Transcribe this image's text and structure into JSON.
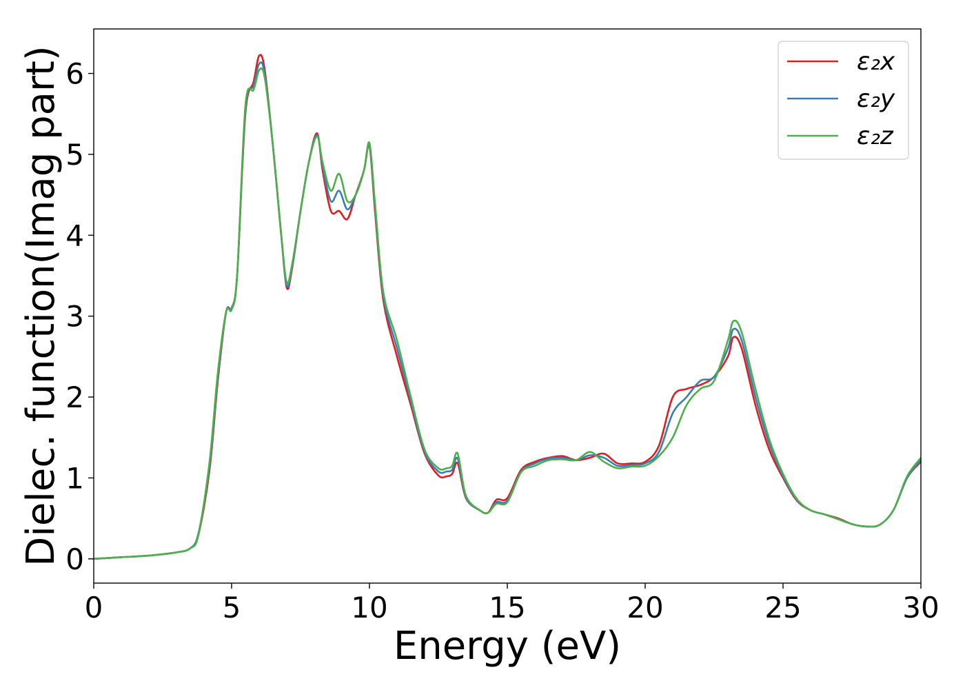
{
  "chart_data": {
    "type": "line",
    "title": "",
    "xlabel": "Energy (eV)",
    "ylabel": "Dielec. function(Imag part)",
    "xlim": [
      0,
      30
    ],
    "ylim": [
      -0.3,
      6.55
    ],
    "x_ticks": [
      "0",
      "5",
      "10",
      "15",
      "20",
      "25",
      "30"
    ],
    "y_ticks": [
      "0",
      "1",
      "2",
      "3",
      "4",
      "5",
      "6"
    ],
    "grid": false,
    "legend_position": "top-right",
    "series": [
      {
        "name": "ε₂x",
        "color": "#e41a1c",
        "x": [
          0,
          1,
          2,
          3,
          3.5,
          3.8,
          4.2,
          4.5,
          4.8,
          5.0,
          5.2,
          5.5,
          5.8,
          6.0,
          6.2,
          6.5,
          6.8,
          7.0,
          7.2,
          7.5,
          7.8,
          8.1,
          8.3,
          8.6,
          8.9,
          9.2,
          9.5,
          9.8,
          10.0,
          10.2,
          10.5,
          11.0,
          11.5,
          12.0,
          12.5,
          12.8,
          13.0,
          13.2,
          13.5,
          14.0,
          14.3,
          14.6,
          15.0,
          15.5,
          16.0,
          16.5,
          17.0,
          17.5,
          18.0,
          18.5,
          19.0,
          19.5,
          20.0,
          20.5,
          21.0,
          21.5,
          22.0,
          22.5,
          23.0,
          23.2,
          23.5,
          24.0,
          24.5,
          25.0,
          25.5,
          26.0,
          26.5,
          27.0,
          27.5,
          28.0,
          28.5,
          29.0,
          29.5,
          30.0
        ],
        "values": [
          0.0,
          0.02,
          0.04,
          0.08,
          0.13,
          0.3,
          1.1,
          2.2,
          3.05,
          3.1,
          3.5,
          5.5,
          5.9,
          6.22,
          6.05,
          5.1,
          4.0,
          3.35,
          3.6,
          4.3,
          4.9,
          5.26,
          4.8,
          4.3,
          4.3,
          4.2,
          4.5,
          4.8,
          5.1,
          4.3,
          3.2,
          2.5,
          1.9,
          1.3,
          1.03,
          1.02,
          1.05,
          1.18,
          0.75,
          0.6,
          0.57,
          0.73,
          0.75,
          1.1,
          1.2,
          1.25,
          1.27,
          1.22,
          1.25,
          1.3,
          1.18,
          1.18,
          1.2,
          1.4,
          2.0,
          2.1,
          2.15,
          2.25,
          2.5,
          2.74,
          2.6,
          1.9,
          1.35,
          1.0,
          0.72,
          0.6,
          0.55,
          0.5,
          0.43,
          0.4,
          0.42,
          0.6,
          1.0,
          1.2
        ]
      },
      {
        "name": "ε₂y",
        "color": "#377eb8",
        "x": [
          0,
          1,
          2,
          3,
          3.5,
          3.8,
          4.2,
          4.5,
          4.8,
          5.0,
          5.2,
          5.5,
          5.8,
          6.0,
          6.2,
          6.5,
          6.8,
          7.0,
          7.2,
          7.5,
          7.8,
          8.1,
          8.3,
          8.6,
          8.9,
          9.2,
          9.5,
          9.8,
          10.0,
          10.2,
          10.5,
          11.0,
          11.5,
          12.0,
          12.5,
          12.8,
          13.0,
          13.2,
          13.5,
          14.0,
          14.3,
          14.6,
          15.0,
          15.5,
          16.0,
          16.5,
          17.0,
          17.5,
          18.0,
          18.5,
          19.0,
          19.5,
          20.0,
          20.5,
          21.0,
          21.5,
          22.0,
          22.5,
          23.0,
          23.2,
          23.5,
          24.0,
          24.5,
          25.0,
          25.5,
          26.0,
          26.5,
          27.0,
          27.5,
          28.0,
          28.5,
          29.0,
          29.5,
          30.0
        ],
        "values": [
          0.0,
          0.02,
          0.04,
          0.08,
          0.13,
          0.32,
          1.15,
          2.25,
          3.05,
          3.1,
          3.5,
          5.55,
          5.85,
          6.12,
          6.0,
          5.1,
          4.0,
          3.38,
          3.62,
          4.3,
          4.9,
          5.24,
          4.85,
          4.42,
          4.55,
          4.32,
          4.5,
          4.8,
          5.12,
          4.35,
          3.25,
          2.6,
          1.95,
          1.32,
          1.08,
          1.08,
          1.1,
          1.24,
          0.76,
          0.6,
          0.57,
          0.7,
          0.72,
          1.08,
          1.18,
          1.24,
          1.25,
          1.22,
          1.28,
          1.25,
          1.15,
          1.16,
          1.18,
          1.32,
          1.8,
          2.0,
          2.2,
          2.25,
          2.6,
          2.84,
          2.7,
          2.0,
          1.42,
          1.02,
          0.73,
          0.6,
          0.55,
          0.49,
          0.43,
          0.4,
          0.42,
          0.6,
          1.0,
          1.22
        ]
      },
      {
        "name": "ε₂z",
        "color": "#4daf4a",
        "x": [
          0,
          1,
          2,
          3,
          3.5,
          3.8,
          4.2,
          4.5,
          4.8,
          5.0,
          5.2,
          5.5,
          5.8,
          6.0,
          6.2,
          6.5,
          6.8,
          7.0,
          7.2,
          7.5,
          7.8,
          8.1,
          8.3,
          8.6,
          8.9,
          9.2,
          9.5,
          9.8,
          10.0,
          10.2,
          10.5,
          11.0,
          11.5,
          12.0,
          12.5,
          12.8,
          13.0,
          13.2,
          13.5,
          14.0,
          14.3,
          14.6,
          15.0,
          15.5,
          16.0,
          16.5,
          17.0,
          17.5,
          18.0,
          18.5,
          19.0,
          19.5,
          20.0,
          20.5,
          21.0,
          21.5,
          22.0,
          22.5,
          23.0,
          23.2,
          23.5,
          24.0,
          24.5,
          25.0,
          25.5,
          26.0,
          26.5,
          27.0,
          27.5,
          28.0,
          28.5,
          29.0,
          29.5,
          30.0
        ],
        "values": [
          0.0,
          0.02,
          0.04,
          0.08,
          0.13,
          0.3,
          1.2,
          2.3,
          3.05,
          3.08,
          3.5,
          5.6,
          5.8,
          6.04,
          5.95,
          5.1,
          4.0,
          3.42,
          3.65,
          4.3,
          4.9,
          5.22,
          4.9,
          4.55,
          4.76,
          4.42,
          4.5,
          4.8,
          5.14,
          4.4,
          3.3,
          2.7,
          2.0,
          1.35,
          1.12,
          1.12,
          1.15,
          1.3,
          0.78,
          0.6,
          0.57,
          0.68,
          0.7,
          1.07,
          1.15,
          1.22,
          1.23,
          1.22,
          1.32,
          1.2,
          1.12,
          1.14,
          1.15,
          1.27,
          1.5,
          1.9,
          2.1,
          2.2,
          2.7,
          2.94,
          2.8,
          2.1,
          1.48,
          1.05,
          0.74,
          0.6,
          0.55,
          0.49,
          0.43,
          0.4,
          0.42,
          0.6,
          1.02,
          1.25
        ]
      }
    ]
  }
}
